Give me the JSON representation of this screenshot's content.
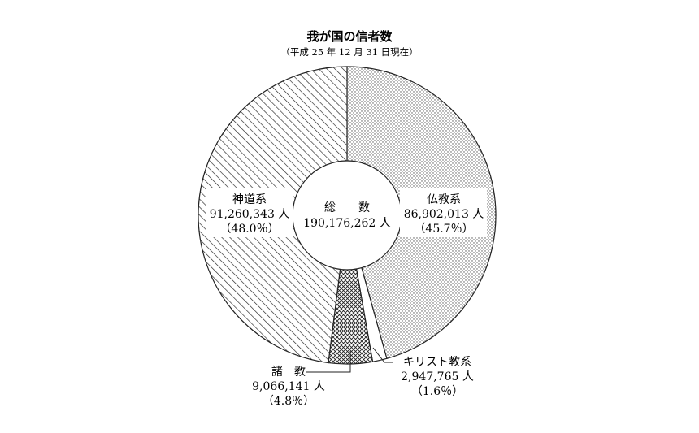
{
  "chart_data": {
    "type": "pie",
    "title": "我が国の信者数",
    "subtitle": "（平成 25 年 12 月 31 日現在）",
    "center": {
      "label": "総　　数",
      "value": "190,176,262 人"
    },
    "slices": [
      {
        "name": "仏教系",
        "value_label": "86,902,013 人",
        "percent_label": "（45.7％）",
        "value": 86902013,
        "percent": 45.7,
        "pattern": "dots"
      },
      {
        "name": "キリスト教系",
        "value_label": "2,947,765 人",
        "percent_label": "（1.6％）",
        "value": 2947765,
        "percent": 1.6,
        "pattern": "blank"
      },
      {
        "name": "諸　教",
        "value_label": "9,066,141 人",
        "percent_label": "（4.8％）",
        "value": 9066141,
        "percent": 4.8,
        "pattern": "crosshatch"
      },
      {
        "name": "神道系",
        "value_label": "91,260,343 人",
        "percent_label": "（48.0％）",
        "value": 91260343,
        "percent": 48.0,
        "pattern": "diagonal"
      }
    ],
    "start_angle": "12 o'clock",
    "direction": "clockwise",
    "legend": "none"
  }
}
